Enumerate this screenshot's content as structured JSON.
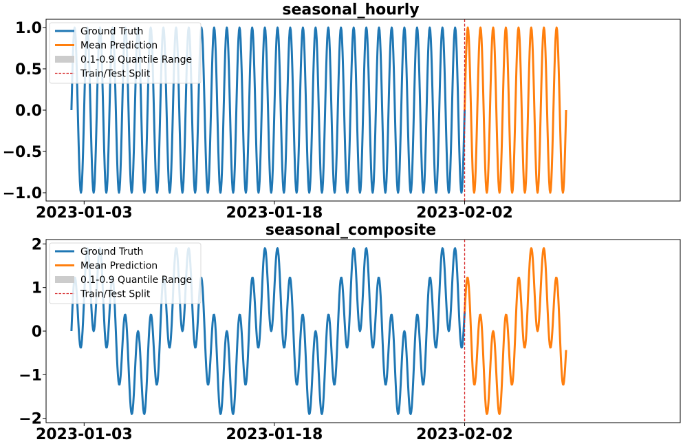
{
  "colors": {
    "ground_truth": "#1f77b4",
    "mean_prediction": "#ff7f0e",
    "quantile": "#cccccc",
    "split": "#d62728"
  },
  "chart_data": [
    {
      "type": "line",
      "title": "seasonal_hourly",
      "xlabel": "",
      "ylabel": "",
      "xlim": [
        "2022-12-31",
        "2023-02-19"
      ],
      "ylim": [
        -1.1,
        1.1
      ],
      "yticks": [
        1.0,
        0.5,
        0.0,
        -0.5,
        -1.0
      ],
      "ytick_labels": [
        "1.0",
        "0.5",
        "0.0",
        "−0.5",
        "−1.0"
      ],
      "xticks": [
        "2023-01-03",
        "2023-01-18",
        "2023-02-02"
      ],
      "grid": false,
      "legend_position": "top-left",
      "train_test_split": "2023-02-02",
      "series_definition": {
        "components": [
          {
            "amplitude": 1.0,
            "period_days": 1.0
          }
        ],
        "start": "2023-01-02",
        "end": "2023-02-10",
        "sampling_hours": 1
      },
      "series": [
        {
          "name": "Ground Truth",
          "range": [
            "2023-01-02",
            "2023-02-02"
          ]
        },
        {
          "name": "Mean Prediction",
          "range": [
            "2023-02-02",
            "2023-02-10"
          ]
        }
      ],
      "legend": [
        "Ground Truth",
        "Mean Prediction",
        "0.1-0.9 Quantile Range",
        "Train/Test Split"
      ]
    },
    {
      "type": "line",
      "title": "seasonal_composite",
      "xlabel": "",
      "ylabel": "",
      "xlim": [
        "2022-12-31",
        "2023-02-19"
      ],
      "ylim": [
        -2.1,
        2.1
      ],
      "yticks": [
        2,
        1,
        0,
        -1,
        -2
      ],
      "ytick_labels": [
        "2",
        "1",
        "0",
        "−1",
        "−2"
      ],
      "xticks": [
        "2023-01-03",
        "2023-01-18",
        "2023-02-02"
      ],
      "grid": false,
      "legend_position": "top-left",
      "train_test_split": "2023-02-02",
      "series_definition": {
        "components": [
          {
            "amplitude": 1.0,
            "period_days": 1.0
          },
          {
            "amplitude": 1.0,
            "period_days": 7.0
          }
        ],
        "start": "2023-01-02",
        "end": "2023-02-10",
        "sampling_hours": 1
      },
      "series": [
        {
          "name": "Ground Truth",
          "range": [
            "2023-01-02",
            "2023-02-02"
          ]
        },
        {
          "name": "Mean Prediction",
          "range": [
            "2023-02-02",
            "2023-02-10"
          ]
        }
      ],
      "legend": [
        "Ground Truth",
        "Mean Prediction",
        "0.1-0.9 Quantile Range",
        "Train/Test Split"
      ]
    }
  ]
}
